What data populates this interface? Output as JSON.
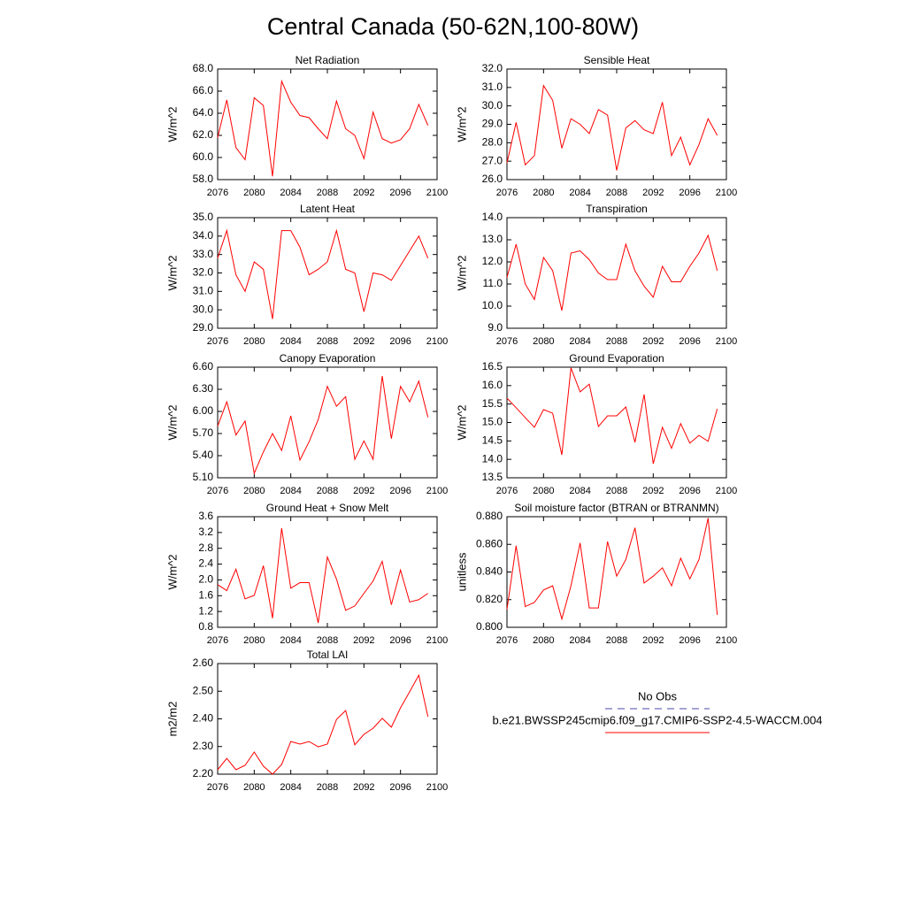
{
  "title": "Central Canada (50-62N,100-80W)",
  "legend": [
    {
      "name": "No Obs",
      "color": "#4a4aa8",
      "dashed": true
    },
    {
      "name": "b.e21.BWSSP245cmip6.f09_g17.CMIP6-SSP2-4.5-WACCM.004",
      "color": "#ff0000",
      "dashed": false
    }
  ],
  "chart_data": [
    {
      "type": "line",
      "title": "Net Radiation",
      "ylabel": "W/m^2",
      "color": "#ff0000",
      "x": [
        2076,
        2077,
        2078,
        2079,
        2080,
        2081,
        2082,
        2083,
        2084,
        2085,
        2086,
        2087,
        2088,
        2089,
        2090,
        2091,
        2092,
        2093,
        2094,
        2095,
        2096,
        2097,
        2098,
        2099
      ],
      "values": [
        61.8,
        65.2,
        60.9,
        59.8,
        65.4,
        64.7,
        58.3,
        66.9,
        65.0,
        63.8,
        63.6,
        62.6,
        61.7,
        65.1,
        62.6,
        62.0,
        59.9,
        64.1,
        61.7,
        61.3,
        61.6,
        62.6,
        64.8,
        62.9
      ],
      "xlim": [
        2076,
        2100
      ],
      "xticks": [
        2076,
        2080,
        2084,
        2088,
        2092,
        2096,
        2100
      ],
      "ylim": [
        58,
        68
      ],
      "yticks": [
        {
          "value": 58,
          "label": "58.0"
        },
        {
          "value": 60,
          "label": "60.0"
        },
        {
          "value": 62,
          "label": "62.0"
        },
        {
          "value": 64,
          "label": "64.0"
        },
        {
          "value": 66,
          "label": "66.0"
        },
        {
          "value": 68,
          "label": "68.0"
        }
      ]
    },
    {
      "type": "line",
      "title": "Sensible Heat",
      "ylabel": "W/m^2",
      "color": "#ff0000",
      "x": [
        2076,
        2077,
        2078,
        2079,
        2080,
        2081,
        2082,
        2083,
        2084,
        2085,
        2086,
        2087,
        2088,
        2089,
        2090,
        2091,
        2092,
        2093,
        2094,
        2095,
        2096,
        2097,
        2098,
        2099
      ],
      "values": [
        26.9,
        29.1,
        26.8,
        27.3,
        31.1,
        30.3,
        27.7,
        29.3,
        29.0,
        28.5,
        29.8,
        29.5,
        26.5,
        28.8,
        29.2,
        28.7,
        28.5,
        30.2,
        27.3,
        28.3,
        26.8,
        27.9,
        29.3,
        28.4
      ],
      "xlim": [
        2076,
        2100
      ],
      "xticks": [
        2076,
        2080,
        2084,
        2088,
        2092,
        2096,
        2100
      ],
      "ylim": [
        26,
        32
      ],
      "yticks": [
        {
          "value": 26,
          "label": "26.0"
        },
        {
          "value": 27,
          "label": "27.0"
        },
        {
          "value": 28,
          "label": "28.0"
        },
        {
          "value": 29,
          "label": "29.0"
        },
        {
          "value": 30,
          "label": "30.0"
        },
        {
          "value": 31,
          "label": "31.0"
        },
        {
          "value": 32,
          "label": "32.0"
        }
      ]
    },
    {
      "type": "line",
      "title": "Latent Heat",
      "ylabel": "W/m^2",
      "color": "#ff0000",
      "x": [
        2076,
        2077,
        2078,
        2079,
        2080,
        2081,
        2082,
        2083,
        2084,
        2085,
        2086,
        2087,
        2088,
        2089,
        2090,
        2091,
        2092,
        2093,
        2094,
        2095,
        2096,
        2097,
        2098,
        2099
      ],
      "values": [
        32.8,
        34.3,
        31.9,
        31.0,
        32.6,
        32.2,
        29.5,
        34.3,
        34.3,
        33.4,
        31.9,
        32.2,
        32.6,
        34.3,
        32.2,
        32.0,
        29.9,
        32.0,
        31.9,
        31.6,
        32.4,
        33.2,
        34.0,
        32.8
      ],
      "xlim": [
        2076,
        2100
      ],
      "xticks": [
        2076,
        2080,
        2084,
        2088,
        2092,
        2096,
        2100
      ],
      "ylim": [
        29,
        35
      ],
      "yticks": [
        {
          "value": 29,
          "label": "29.0"
        },
        {
          "value": 30,
          "label": "30.0"
        },
        {
          "value": 31,
          "label": "31.0"
        },
        {
          "value": 32,
          "label": "32.0"
        },
        {
          "value": 33,
          "label": "33.0"
        },
        {
          "value": 34,
          "label": "34.0"
        },
        {
          "value": 35,
          "label": "35.0"
        }
      ]
    },
    {
      "type": "line",
      "title": "Transpiration",
      "ylabel": "W/m^2",
      "color": "#ff0000",
      "x": [
        2076,
        2077,
        2078,
        2079,
        2080,
        2081,
        2082,
        2083,
        2084,
        2085,
        2086,
        2087,
        2088,
        2089,
        2090,
        2091,
        2092,
        2093,
        2094,
        2095,
        2096,
        2097,
        2098,
        2099
      ],
      "values": [
        11.3,
        12.8,
        11.0,
        10.3,
        12.2,
        11.6,
        9.8,
        12.4,
        12.5,
        12.1,
        11.5,
        11.2,
        11.2,
        12.8,
        11.6,
        10.9,
        10.4,
        11.8,
        11.1,
        11.1,
        11.8,
        12.4,
        13.2,
        11.6
      ],
      "xlim": [
        2076,
        2100
      ],
      "xticks": [
        2076,
        2080,
        2084,
        2088,
        2092,
        2096,
        2100
      ],
      "ylim": [
        9,
        14
      ],
      "yticks": [
        {
          "value": 9,
          "label": "9.0"
        },
        {
          "value": 10,
          "label": "10.0"
        },
        {
          "value": 11,
          "label": "11.0"
        },
        {
          "value": 12,
          "label": "12.0"
        },
        {
          "value": 13,
          "label": "13.0"
        },
        {
          "value": 14,
          "label": "14.0"
        }
      ]
    },
    {
      "type": "line",
      "title": "Canopy Evaporation",
      "ylabel": "W/m^2",
      "color": "#ff0000",
      "x": [
        2076,
        2077,
        2078,
        2079,
        2080,
        2081,
        2082,
        2083,
        2084,
        2085,
        2086,
        2087,
        2088,
        2089,
        2090,
        2091,
        2092,
        2093,
        2094,
        2095,
        2096,
        2097,
        2098,
        2099
      ],
      "values": [
        5.8,
        6.13,
        5.68,
        5.87,
        5.16,
        5.45,
        5.7,
        5.47,
        5.94,
        5.34,
        5.59,
        5.89,
        6.34,
        6.07,
        6.2,
        5.35,
        5.6,
        5.35,
        6.48,
        5.63,
        6.34,
        6.13,
        6.41,
        5.92
      ],
      "xlim": [
        2076,
        2100
      ],
      "xticks": [
        2076,
        2080,
        2084,
        2088,
        2092,
        2096,
        2100
      ],
      "ylim": [
        5.1,
        6.6
      ],
      "yticks": [
        {
          "value": 5.1,
          "label": "5.10"
        },
        {
          "value": 5.4,
          "label": "5.40"
        },
        {
          "value": 5.7,
          "label": "5.70"
        },
        {
          "value": 6.0,
          "label": "6.00"
        },
        {
          "value": 6.3,
          "label": "6.30"
        },
        {
          "value": 6.6,
          "label": "6.60"
        }
      ]
    },
    {
      "type": "line",
      "title": "Ground Evaporation",
      "ylabel": "W/m^2",
      "color": "#ff0000",
      "x": [
        2076,
        2077,
        2078,
        2079,
        2080,
        2081,
        2082,
        2083,
        2084,
        2085,
        2086,
        2087,
        2088,
        2089,
        2090,
        2091,
        2092,
        2093,
        2094,
        2095,
        2096,
        2097,
        2098,
        2099
      ],
      "values": [
        15.66,
        15.4,
        15.13,
        14.87,
        15.35,
        15.25,
        14.12,
        16.48,
        15.83,
        16.04,
        14.89,
        15.18,
        15.18,
        15.42,
        14.46,
        15.76,
        13.88,
        14.87,
        14.3,
        14.97,
        14.44,
        14.65,
        14.49,
        15.37
      ],
      "xlim": [
        2076,
        2100
      ],
      "xticks": [
        2076,
        2080,
        2084,
        2088,
        2092,
        2096,
        2100
      ],
      "ylim": [
        13.5,
        16.5
      ],
      "yticks": [
        13.5,
        {
          "value": 14,
          "label": "14.0"
        },
        14.5,
        {
          "value": 15,
          "label": "15.0"
        },
        15.5,
        {
          "value": 16,
          "label": "16.0"
        },
        16.5
      ]
    },
    {
      "type": "line",
      "title": "Ground Heat + Snow Melt",
      "ylabel": "W/m^2",
      "color": "#ff0000",
      "x": [
        2076,
        2077,
        2078,
        2079,
        2080,
        2081,
        2082,
        2083,
        2084,
        2085,
        2086,
        2087,
        2088,
        2089,
        2090,
        2091,
        2092,
        2093,
        2094,
        2095,
        2096,
        2097,
        2098,
        2099
      ],
      "values": [
        1.88,
        1.73,
        2.27,
        1.52,
        1.61,
        2.36,
        1.03,
        3.31,
        1.79,
        1.93,
        1.93,
        0.91,
        2.58,
        2.02,
        1.23,
        1.34,
        1.66,
        1.97,
        2.47,
        1.37,
        2.25,
        1.44,
        1.5,
        1.66
      ],
      "xlim": [
        2076,
        2100
      ],
      "xticks": [
        2076,
        2080,
        2084,
        2088,
        2092,
        2096,
        2100
      ],
      "ylim": [
        0.8,
        3.6
      ],
      "yticks": [
        0.8,
        1.2,
        1.6,
        {
          "value": 2,
          "label": "2.0"
        },
        2.4,
        2.8,
        3.2,
        3.6
      ]
    },
    {
      "type": "line",
      "title": "Soil moisture factor (BTRAN or BTRANMN)",
      "ylabel": "unitless",
      "color": "#ff0000",
      "x": [
        2076,
        2077,
        2078,
        2079,
        2080,
        2081,
        2082,
        2083,
        2084,
        2085,
        2086,
        2087,
        2088,
        2089,
        2090,
        2091,
        2092,
        2093,
        2094,
        2095,
        2096,
        2097,
        2098,
        2099
      ],
      "values": [
        0.813,
        0.859,
        0.815,
        0.818,
        0.827,
        0.83,
        0.806,
        0.83,
        0.861,
        0.814,
        0.814,
        0.862,
        0.837,
        0.849,
        0.872,
        0.832,
        0.837,
        0.843,
        0.83,
        0.85,
        0.835,
        0.849,
        0.879,
        0.809
      ],
      "xlim": [
        2076,
        2100
      ],
      "xticks": [
        2076,
        2080,
        2084,
        2088,
        2092,
        2096,
        2100
      ],
      "ylim": [
        0.8,
        0.88
      ],
      "yticks": [
        {
          "value": 0.8,
          "label": "0.800"
        },
        {
          "value": 0.82,
          "label": "0.820"
        },
        {
          "value": 0.84,
          "label": "0.840"
        },
        {
          "value": 0.86,
          "label": "0.860"
        },
        {
          "value": 0.88,
          "label": "0.880"
        }
      ]
    },
    {
      "type": "line",
      "title": "Total LAI",
      "ylabel": "m2/m2",
      "color": "#ff0000",
      "x": [
        2076,
        2077,
        2078,
        2079,
        2080,
        2081,
        2082,
        2083,
        2084,
        2085,
        2086,
        2087,
        2088,
        2089,
        2090,
        2091,
        2092,
        2093,
        2094,
        2095,
        2096,
        2097,
        2098,
        2099
      ],
      "values": [
        2.216,
        2.257,
        2.216,
        2.232,
        2.28,
        2.229,
        2.2,
        2.235,
        2.318,
        2.309,
        2.318,
        2.299,
        2.309,
        2.398,
        2.43,
        2.306,
        2.344,
        2.366,
        2.402,
        2.37,
        2.44,
        2.498,
        2.558,
        2.408
      ],
      "xlim": [
        2076,
        2100
      ],
      "xticks": [
        2076,
        2080,
        2084,
        2088,
        2092,
        2096,
        2100
      ],
      "ylim": [
        2.2,
        2.6
      ],
      "yticks": [
        {
          "value": 2.2,
          "label": "2.20"
        },
        {
          "value": 2.3,
          "label": "2.30"
        },
        {
          "value": 2.4,
          "label": "2.40"
        },
        {
          "value": 2.5,
          "label": "2.50"
        },
        {
          "value": 2.6,
          "label": "2.60"
        }
      ]
    }
  ]
}
